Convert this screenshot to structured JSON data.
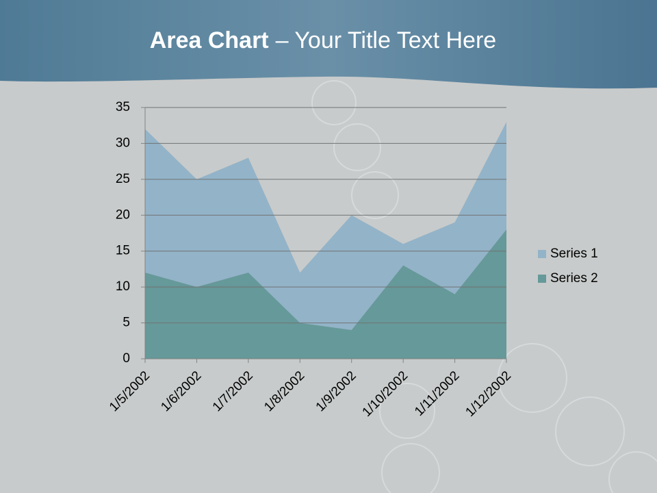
{
  "chart_data": {
    "type": "area",
    "title": [
      "Area Chart",
      "– Your Title Text Here"
    ],
    "categories": [
      "1/5/2002",
      "1/6/2002",
      "1/7/2002",
      "1/8/2002",
      "1/9/2002",
      "1/10/2002",
      "1/11/2002",
      "1/12/2002"
    ],
    "series": [
      {
        "name": "Series 1",
        "color": "#93b3c8",
        "values": [
          32,
          25,
          28,
          12,
          20,
          16,
          19,
          33
        ]
      },
      {
        "name": "Series 2",
        "color": "#669999",
        "values": [
          12,
          10,
          12,
          5,
          4,
          13,
          9,
          18
        ]
      }
    ],
    "ylim": [
      0,
      35
    ],
    "yticks": [
      0,
      5,
      10,
      15,
      20,
      25,
      30,
      35
    ],
    "grid": true,
    "legend": "right"
  }
}
